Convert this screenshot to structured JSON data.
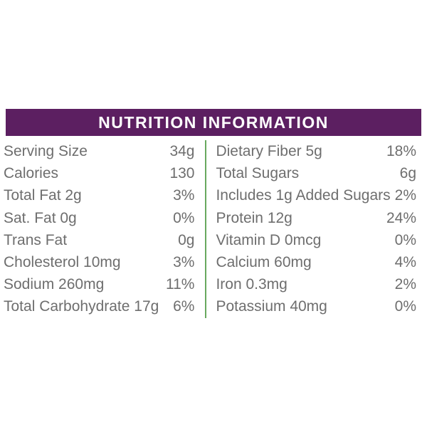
{
  "header": {
    "title": "NUTRITION INFORMATION"
  },
  "colors": {
    "header_bg": "#5C1F61",
    "header_text": "#FFFFFF",
    "body_text": "#6E6E6E",
    "divider_green": "#68A95E",
    "background": "#FFFFFF"
  },
  "table": {
    "columns": [
      {
        "name": "left",
        "rows": [
          {
            "label": "Serving Size",
            "value": "34g"
          },
          {
            "label": "Calories",
            "value": "130"
          },
          {
            "label": "Total Fat 2g",
            "value": "3%"
          },
          {
            "label": "Sat. Fat 0g",
            "value": "0%"
          },
          {
            "label": "Trans Fat",
            "value": "0g"
          },
          {
            "label": "Cholesterol 10mg",
            "value": "3%"
          },
          {
            "label": "Sodium 260mg",
            "value": "11%"
          },
          {
            "label": "Total Carbohydrate 17g",
            "value": "6%"
          }
        ]
      },
      {
        "name": "right",
        "rows": [
          {
            "label": "Dietary Fiber 5g",
            "value": "18%"
          },
          {
            "label": "Total Sugars",
            "value": "6g"
          },
          {
            "label": "Includes 1g Added Sugars",
            "value": "2%"
          },
          {
            "label": "Protein 12g",
            "value": "24%"
          },
          {
            "label": "Vitamin D 0mcg",
            "value": "0%"
          },
          {
            "label": "Calcium 60mg",
            "value": "4%"
          },
          {
            "label": "Iron 0.3mg",
            "value": "2%"
          },
          {
            "label": "Potassium 40mg",
            "value": "0%"
          }
        ]
      }
    ]
  }
}
